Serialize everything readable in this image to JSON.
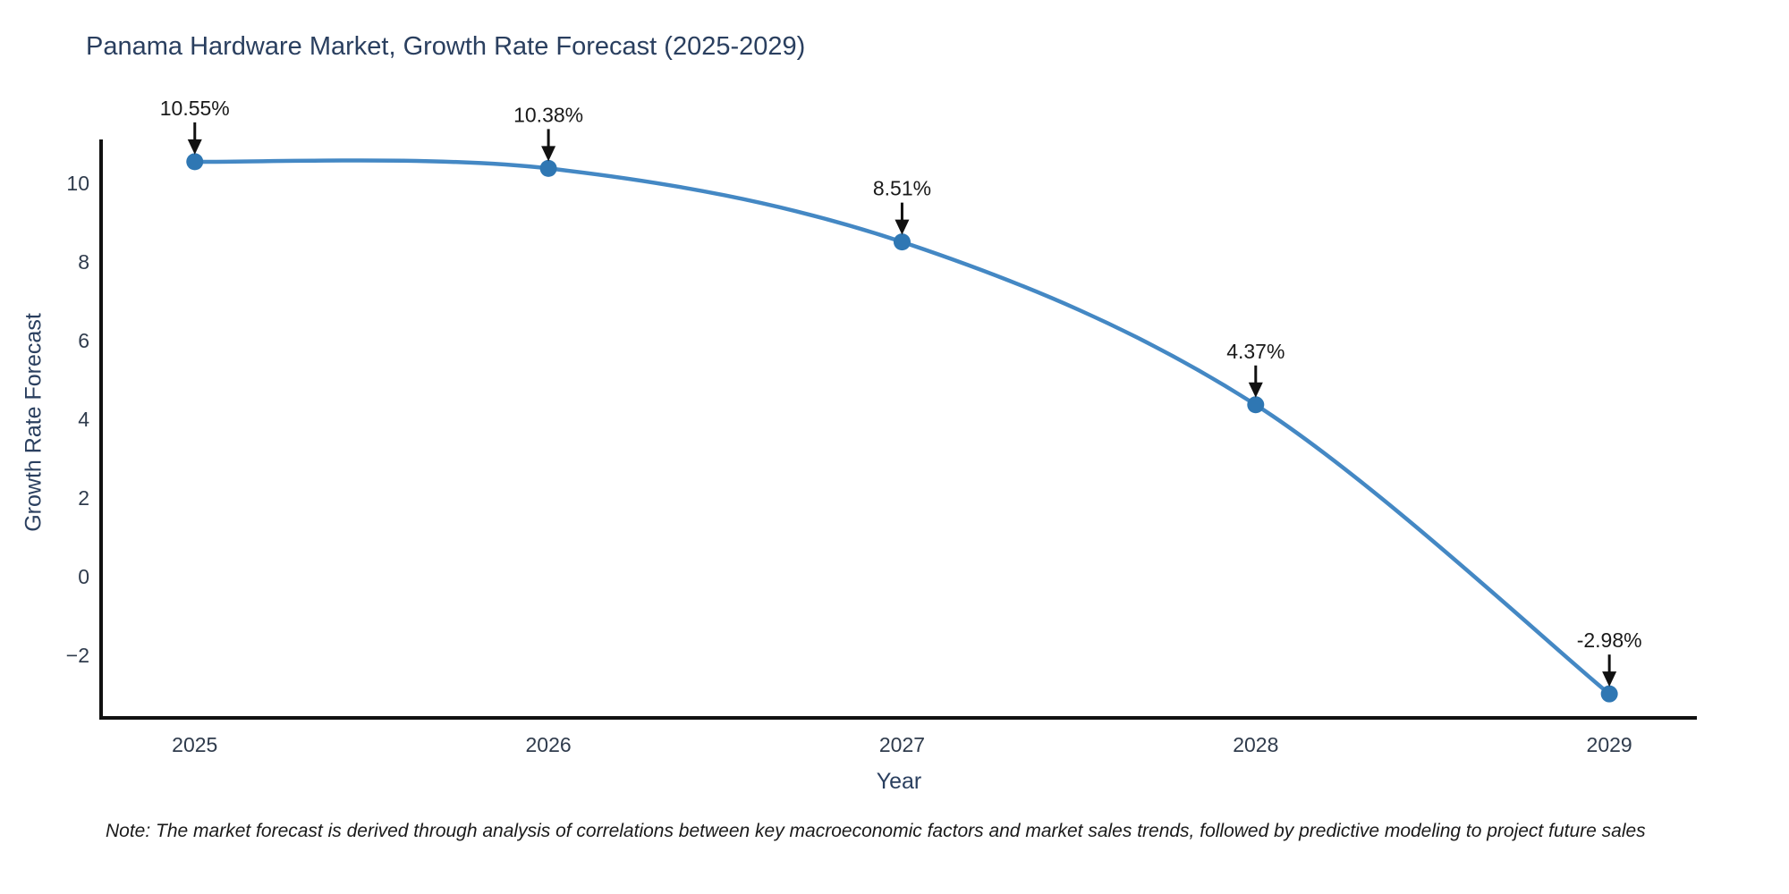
{
  "header": {
    "title": "Panama Hardware Market, Growth Rate Forecast (2025-2029)"
  },
  "axes": {
    "x_label": "Year",
    "y_label": "Growth Rate Forecast"
  },
  "footnote": "Note: The market forecast is derived through analysis of correlations between key macroeconomic factors and market sales trends, followed by predictive modeling to project future sales",
  "colors": {
    "line": "#4488c4",
    "marker": "#2f77b3",
    "axis": "#111111",
    "arrow": "#111111",
    "title_text": "#2a3f5f",
    "tick_text": "#2f3b4c",
    "annotation_text": "#1a1a1a",
    "background": "#ffffff"
  },
  "chart_data": {
    "type": "line",
    "title": "Panama Hardware Market, Growth Rate Forecast (2025-2029)",
    "xlabel": "Year",
    "ylabel": "Growth Rate Forecast",
    "x": [
      2025,
      2026,
      2027,
      2028,
      2029
    ],
    "series": [
      {
        "name": "Growth Rate Forecast",
        "values": [
          10.55,
          10.38,
          8.51,
          4.37,
          -2.98
        ]
      }
    ],
    "point_labels": [
      "10.55%",
      "10.38%",
      "8.51%",
      "4.37%",
      "-2.98%"
    ],
    "xticks": [
      "2025",
      "2026",
      "2027",
      "2028",
      "2029"
    ],
    "yticks": [
      10,
      8,
      6,
      4,
      2,
      0,
      -2
    ],
    "xlim": [
      2024.735,
      2029.245
    ],
    "ylim": [
      -3.59,
      11.07
    ],
    "grid": false,
    "legend": false,
    "line_shape": "spline",
    "marker": "circle",
    "annotations": "arrow-down-to-point"
  }
}
